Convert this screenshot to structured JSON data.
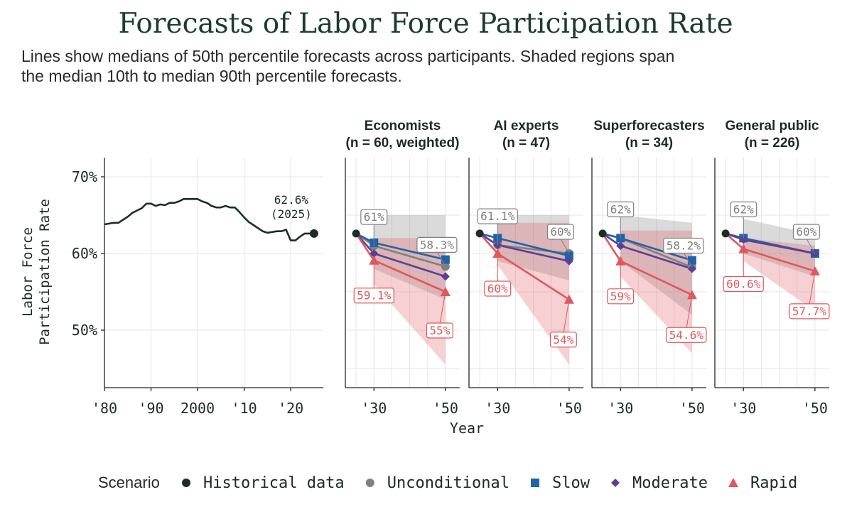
{
  "title": "Forecasts of Labor Force Participation Rate",
  "subtitle_line1": "Lines show medians of 50th percentile forecasts across participants. Shaded regions span",
  "subtitle_line2": "the median 10th to median 90th percentile forecasts.",
  "colors": {
    "historical": "#1b2e26",
    "unconditional": "#808080",
    "slow": "#1f63a8",
    "moderate": "#5b3f94",
    "rapid": "#e0575c"
  },
  "chart_data": {
    "type": "line",
    "ylabel_line1": "Labor Force",
    "ylabel_line2": "Participation Rate",
    "xlabel": "Year",
    "ylim": [
      42.5,
      72.5
    ],
    "y_ticks": [
      50,
      60,
      70
    ],
    "y_tick_labels": [
      "50%",
      "60%",
      "70%"
    ],
    "historical": {
      "x_ticks": [
        1980,
        1990,
        2000,
        2010,
        2020
      ],
      "x_tick_labels": [
        "'80",
        "'90",
        "2000",
        "'10",
        "'20"
      ],
      "xlim": [
        1980,
        2027
      ],
      "x": [
        1980,
        1981,
        1982,
        1983,
        1984,
        1985,
        1986,
        1987,
        1988,
        1989,
        1990,
        1991,
        1992,
        1993,
        1994,
        1995,
        1996,
        1997,
        1998,
        1999,
        2000,
        2001,
        2002,
        2003,
        2004,
        2005,
        2006,
        2007,
        2008,
        2009,
        2010,
        2011,
        2012,
        2013,
        2014,
        2015,
        2016,
        2017,
        2018,
        2019,
        2020,
        2021,
        2022,
        2023,
        2024,
        2025
      ],
      "y": [
        63.8,
        63.9,
        64.0,
        64.0,
        64.4,
        64.8,
        65.3,
        65.6,
        65.9,
        66.5,
        66.5,
        66.2,
        66.4,
        66.3,
        66.6,
        66.6,
        66.8,
        67.1,
        67.1,
        67.1,
        67.1,
        66.8,
        66.6,
        66.2,
        66.0,
        66.0,
        66.2,
        66.0,
        66.0,
        65.4,
        64.7,
        64.1,
        63.7,
        63.3,
        62.9,
        62.7,
        62.8,
        62.9,
        62.9,
        63.1,
        61.7,
        61.7,
        62.2,
        62.6,
        62.6,
        62.6
      ],
      "end_label_value": "62.6%",
      "end_label_year": "(2025)"
    },
    "forecast_x_ticks": [
      2030,
      2050
    ],
    "forecast_x_tick_labels": [
      "'30",
      "'50"
    ],
    "forecast_xlim": [
      2022,
      2054
    ],
    "start_point": {
      "x": 2025,
      "y": 62.6
    },
    "facets": [
      {
        "title_line1": "Economists",
        "title_line2": "(n = 60, weighted)",
        "series": {
          "unconditional": [
            61.0,
            58.3
          ],
          "slow": [
            61.4,
            59.2
          ],
          "moderate": [
            60.0,
            57.0
          ],
          "rapid": [
            59.1,
            55.0
          ]
        },
        "bands": {
          "unconditional": {
            "low": [
              58.0,
              54.0
            ],
            "high": [
              65.0,
              65.0
            ]
          },
          "rapid": {
            "low": [
              56.0,
              45.5
            ],
            "high": [
              62.0,
              62.0
            ]
          }
        },
        "labels": [
          {
            "text": "61%",
            "series": "unconditional"
          },
          {
            "text": "58.3%",
            "series": "unconditional"
          },
          {
            "text": "59.1%",
            "series": "rapid"
          },
          {
            "text": "55%",
            "series": "rapid"
          }
        ]
      },
      {
        "title_line1": "AI experts",
        "title_line2": "(n = 47)",
        "series": {
          "unconditional": [
            61.1,
            60.0
          ],
          "slow": [
            62.0,
            59.7
          ],
          "moderate": [
            61.1,
            59.0
          ],
          "rapid": [
            60.0,
            54.0
          ]
        },
        "bands": {
          "unconditional": {
            "low": [
              59.0,
              56.5
            ],
            "high": [
              65.0,
              65.0
            ]
          },
          "rapid": {
            "low": [
              58.5,
              45.5
            ],
            "high": [
              64.0,
              64.0
            ]
          }
        },
        "labels": [
          {
            "text": "61.1%",
            "series": "unconditional"
          },
          {
            "text": "60%",
            "series": "unconditional"
          },
          {
            "text": "60%",
            "series": "rapid"
          },
          {
            "text": "54%",
            "series": "rapid"
          }
        ]
      },
      {
        "title_line1": "Superforecasters",
        "title_line2": "(n = 34)",
        "series": {
          "unconditional": [
            62.0,
            58.2
          ],
          "slow": [
            62.0,
            59.1
          ],
          "moderate": [
            61.0,
            58.0
          ],
          "rapid": [
            59.0,
            54.6
          ]
        },
        "bands": {
          "unconditional": {
            "low": [
              59.0,
              52.0
            ],
            "high": [
              65.0,
              64.0
            ]
          },
          "rapid": {
            "low": [
              57.0,
              47.0
            ],
            "high": [
              63.0,
              63.0
            ]
          }
        },
        "labels": [
          {
            "text": "62%",
            "series": "unconditional"
          },
          {
            "text": "58.2%",
            "series": "unconditional"
          },
          {
            "text": "59%",
            "series": "rapid"
          },
          {
            "text": "54.6%",
            "series": "rapid"
          }
        ]
      },
      {
        "title_line1": "General public",
        "title_line2": "(n = 226)",
        "series": {
          "unconditional": [
            62.0,
            60.0
          ],
          "slow": [
            62.0,
            60.0
          ],
          "moderate": [
            61.8,
            60.0
          ],
          "rapid": [
            60.6,
            57.7
          ]
        },
        "bands": {
          "unconditional": {
            "low": [
              60.0,
              57.0
            ],
            "high": [
              64.5,
              62.5
            ]
          },
          "rapid": {
            "low": [
              59.0,
              52.5
            ],
            "high": [
              62.0,
              61.0
            ]
          }
        },
        "labels": [
          {
            "text": "62%",
            "series": "unconditional"
          },
          {
            "text": "60%",
            "series": "unconditional"
          },
          {
            "text": "60.6%",
            "series": "rapid"
          },
          {
            "text": "57.7%",
            "series": "rapid"
          }
        ]
      }
    ],
    "legend": {
      "title": "Scenario",
      "items": [
        {
          "key": "historical",
          "label": "Historical data",
          "marker": "circle"
        },
        {
          "key": "unconditional",
          "label": "Unconditional",
          "marker": "circle"
        },
        {
          "key": "slow",
          "label": "Slow",
          "marker": "square"
        },
        {
          "key": "moderate",
          "label": "Moderate",
          "marker": "diamond"
        },
        {
          "key": "rapid",
          "label": "Rapid",
          "marker": "triangle"
        }
      ]
    }
  }
}
